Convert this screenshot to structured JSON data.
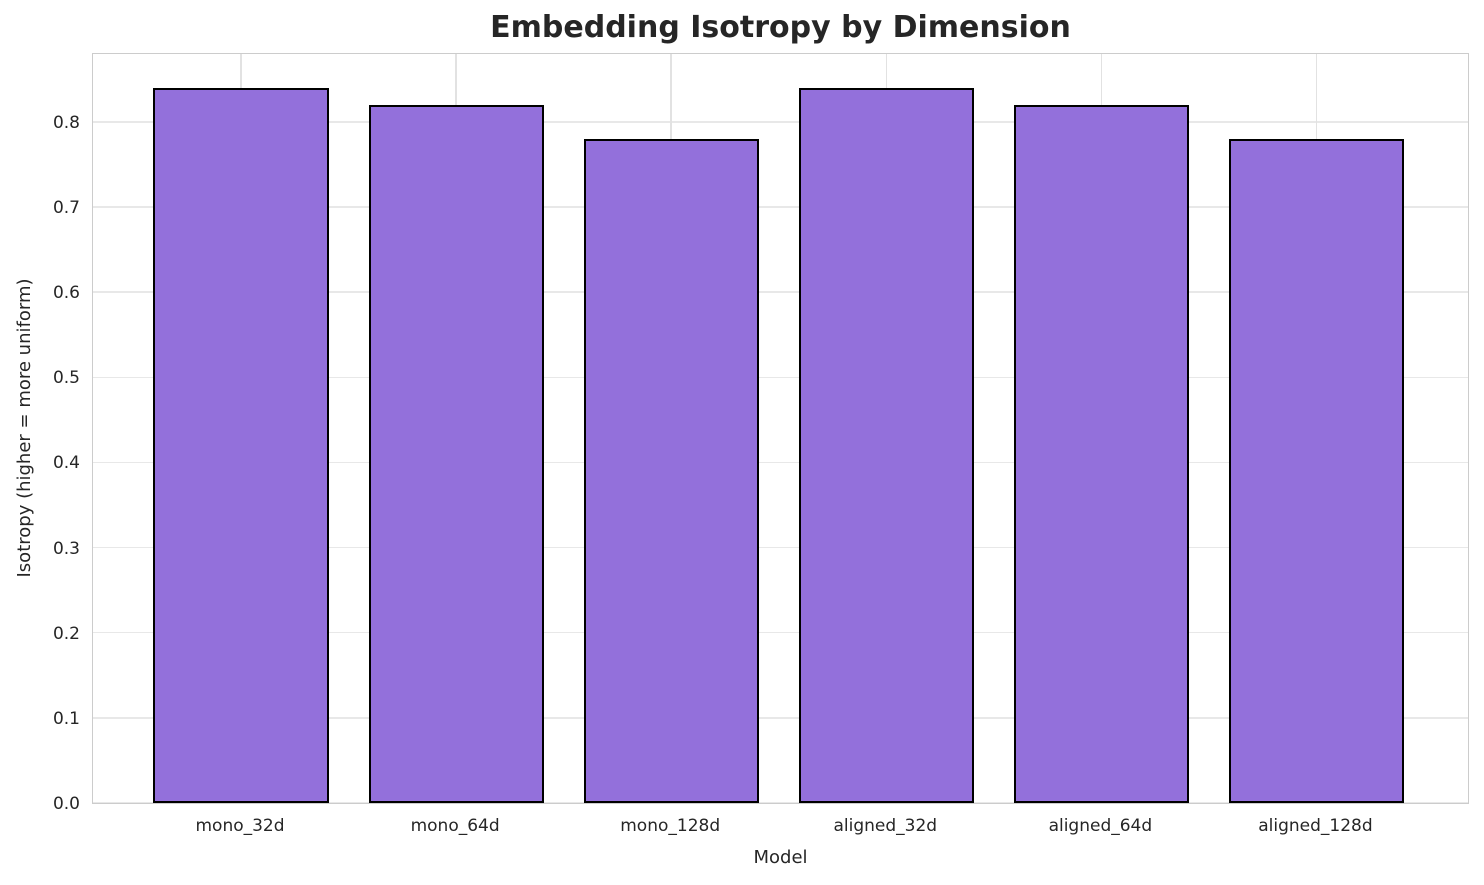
{
  "title": "Embedding Isotropy by Dimension",
  "chart_data": {
    "type": "bar",
    "categories": [
      "mono_32d",
      "mono_64d",
      "mono_128d",
      "aligned_32d",
      "aligned_64d",
      "aligned_128d"
    ],
    "values": [
      0.84,
      0.82,
      0.78,
      0.84,
      0.82,
      0.78
    ],
    "title": "Embedding Isotropy by Dimension",
    "xlabel": "Model",
    "ylabel": "Isotropy (higher = more uniform)",
    "ylim": [
      0,
      0.882
    ],
    "yticks": [
      0.0,
      0.1,
      0.2,
      0.3,
      0.4,
      0.5,
      0.6,
      0.7,
      0.8
    ],
    "ytick_labels": [
      "0.0",
      "0.1",
      "0.2",
      "0.3",
      "0.4",
      "0.5",
      "0.6",
      "0.7",
      "0.8"
    ],
    "grid": true,
    "legend": null,
    "bar_color": "#9370db",
    "bar_edge_color": "#000000",
    "grid_color": "#e8e8e8",
    "spine_color": "#cccccc",
    "text_color": "#262626"
  }
}
